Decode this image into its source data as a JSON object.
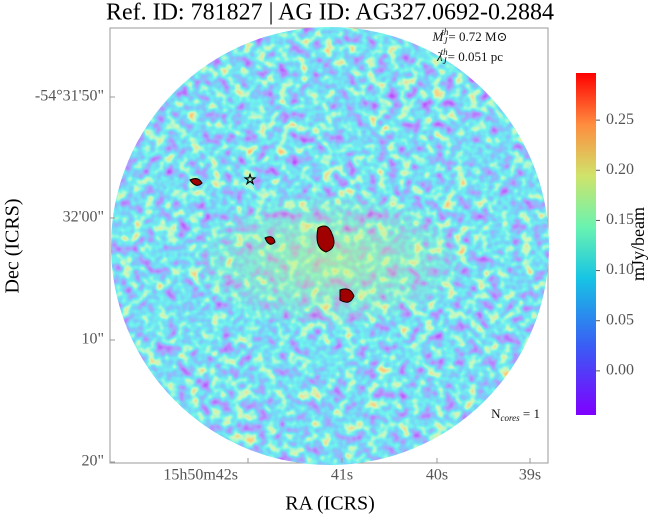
{
  "chart_data": {
    "type": "image",
    "title": "Ref. ID: 781827 | AG ID: AG327.0692-0.2884",
    "x_label": "RA (ICRS)",
    "y_label": "Dec (ICRS)",
    "x_tick_labels": [
      "15h50m42s",
      "41s",
      "40s",
      "39s"
    ],
    "y_tick_labels": [
      "-54°31'50\"",
      "32'00\"",
      "10\"",
      "20\""
    ],
    "annotations": [
      {
        "symbol": "M",
        "sub": "J",
        "sup": "th",
        "text": "= 0.72 M⊙"
      },
      {
        "symbol": "λ",
        "sub": "J",
        "sup": "th",
        "text": "= 0.051 pc"
      },
      {
        "symbol": "N",
        "sub": "cores",
        "text": " = 1"
      }
    ],
    "colorbar": {
      "label": "mJy/beam",
      "ylim": [
        -0.044,
        0.297
      ],
      "yticks": [
        {
          "value": 0,
          "label": "0.00"
        },
        0.05,
        {
          "value": 0.1,
          "label": "0.10"
        },
        0.15,
        {
          "value": 0.2,
          "label": "0.20"
        },
        0.25
      ]
    }
  }
}
